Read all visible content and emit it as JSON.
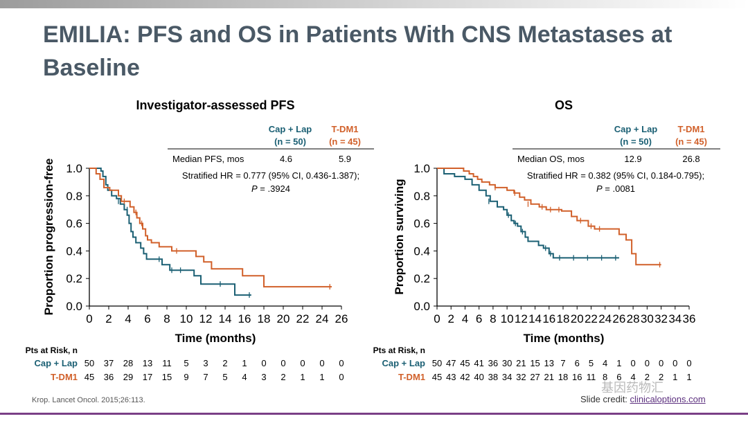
{
  "title": "EMILIA: PFS and OS in Patients With CNS Metastases at Baseline",
  "colors": {
    "cap_lap": "#1a5f73",
    "tdm1": "#d1602a",
    "title": "#4a5966"
  },
  "reference": "Krop. Lancet Oncol. 2015;26:113.",
  "credit": {
    "prefix": "Slide credit: ",
    "link": "clinicaloptions.com"
  },
  "watermark": "基因药物汇",
  "chart_data": [
    {
      "type": "line",
      "title": "Investigator-assessed PFS",
      "xlabel": "Time (months)",
      "ylabel": "Proportion progression-free",
      "xlim": [
        0,
        26
      ],
      "ylim": [
        0,
        1.0
      ],
      "xticks": [
        "0",
        "2",
        "4",
        "6",
        "8",
        "10",
        "12",
        "14",
        "16",
        "18",
        "20",
        "22",
        "24",
        "26"
      ],
      "yticks": [
        "0.0",
        "0.2",
        "0.4",
        "0.6",
        "0.8",
        "1.0"
      ],
      "table": {
        "headers": [
          "Cap + Lap",
          "(n = 50)",
          "T-DM1",
          "(n = 45)"
        ],
        "row_label": "Median PFS, mos",
        "values": [
          "4.6",
          "5.9"
        ],
        "hr_text": "Stratified HR = 0.777 (95% CI, 0.436-1.387);",
        "p_label": "P",
        "p_value": " = .3924"
      },
      "risk": {
        "label": "Pts at Risk, n",
        "times": [
          0,
          2,
          4,
          6,
          8,
          10,
          12,
          14,
          16,
          18,
          20,
          22,
          24,
          26
        ],
        "rows": [
          {
            "name": "Cap + Lap",
            "values": [
              "50",
              "37",
              "28",
              "13",
              "11",
              "5",
              "3",
              "2",
              "1",
              "0",
              "0",
              "0",
              "0",
              "0"
            ]
          },
          {
            "name": "T-DM1",
            "values": [
              "45",
              "36",
              "29",
              "17",
              "15",
              "9",
              "7",
              "5",
              "4",
              "3",
              "2",
              "1",
              "1",
              "0"
            ]
          }
        ]
      },
      "series": [
        {
          "name": "Cap + Lap",
          "steps": [
            [
              0,
              1.0
            ],
            [
              1.2,
              0.98
            ],
            [
              1.4,
              0.94
            ],
            [
              1.7,
              0.88
            ],
            [
              1.9,
              0.84
            ],
            [
              2.3,
              0.8
            ],
            [
              2.8,
              0.78
            ],
            [
              3.2,
              0.74
            ],
            [
              3.6,
              0.7
            ],
            [
              3.9,
              0.66
            ],
            [
              4.1,
              0.6
            ],
            [
              4.3,
              0.54
            ],
            [
              4.5,
              0.5
            ],
            [
              4.8,
              0.46
            ],
            [
              5.3,
              0.42
            ],
            [
              5.6,
              0.38
            ],
            [
              5.9,
              0.34
            ],
            [
              7.5,
              0.3
            ],
            [
              8.3,
              0.26
            ],
            [
              10.8,
              0.22
            ],
            [
              11.5,
              0.16
            ],
            [
              15.0,
              0.08
            ],
            [
              16.7,
              0.08
            ]
          ],
          "censors": [
            [
              3.0,
              0.76
            ],
            [
              3.9,
              0.7
            ],
            [
              7.2,
              0.34
            ],
            [
              8.5,
              0.26
            ],
            [
              9.4,
              0.26
            ],
            [
              13.5,
              0.16
            ],
            [
              16.5,
              0.08
            ]
          ]
        },
        {
          "name": "T-DM1",
          "steps": [
            [
              0,
              1.0
            ],
            [
              0.7,
              0.96
            ],
            [
              1.1,
              0.92
            ],
            [
              1.5,
              0.86
            ],
            [
              2.1,
              0.84
            ],
            [
              3.0,
              0.8
            ],
            [
              3.3,
              0.76
            ],
            [
              4.2,
              0.72
            ],
            [
              4.6,
              0.68
            ],
            [
              4.9,
              0.64
            ],
            [
              5.2,
              0.6
            ],
            [
              5.5,
              0.56
            ],
            [
              5.8,
              0.51
            ],
            [
              6.0,
              0.48
            ],
            [
              6.4,
              0.46
            ],
            [
              7.2,
              0.43
            ],
            [
              8.5,
              0.4
            ],
            [
              11.0,
              0.36
            ],
            [
              11.8,
              0.32
            ],
            [
              12.6,
              0.27
            ],
            [
              15.8,
              0.22
            ],
            [
              18.0,
              0.14
            ],
            [
              25.0,
              0.14
            ]
          ],
          "censors": [
            [
              3.6,
              0.76
            ],
            [
              4.8,
              0.68
            ],
            [
              5.4,
              0.6
            ],
            [
              9.0,
              0.4
            ],
            [
              24.8,
              0.14
            ]
          ]
        }
      ]
    },
    {
      "type": "line",
      "title": "OS",
      "xlabel": "Time (months)",
      "ylabel": "Proportion surviving",
      "xlim": [
        0,
        36
      ],
      "ylim": [
        0,
        1.0
      ],
      "xticks": [
        "0",
        "2",
        "4",
        "6",
        "8",
        "10",
        "12",
        "14",
        "16",
        "18",
        "20",
        "22",
        "24",
        "26",
        "28",
        "30",
        "32",
        "34",
        "36"
      ],
      "yticks": [
        "0.0",
        "0.2",
        "0.4",
        "0.6",
        "0.8",
        "1.0"
      ],
      "table": {
        "headers": [
          "Cap + Lap",
          "(n = 50)",
          "T-DM1",
          "(n = 45)"
        ],
        "row_label": "Median OS, mos",
        "values": [
          "12.9",
          "26.8"
        ],
        "hr_text": "Stratified HR = 0.382 (95% CI, 0.184-0.795);",
        "p_label": "P",
        "p_value": " = .0081"
      },
      "risk": {
        "label": "Pts at Risk, n",
        "times": [
          0,
          2,
          4,
          6,
          8,
          10,
          12,
          14,
          16,
          18,
          20,
          22,
          24,
          26,
          28,
          30,
          32,
          34,
          36
        ],
        "rows": [
          {
            "name": "Cap + Lap",
            "values": [
              "50",
              "47",
              "45",
              "41",
              "36",
              "30",
              "21",
              "15",
              "13",
              "7",
              "6",
              "5",
              "4",
              "1",
              "0",
              "0",
              "0",
              "0",
              "0"
            ]
          },
          {
            "name": "T-DM1",
            "values": [
              "45",
              "43",
              "42",
              "40",
              "38",
              "34",
              "32",
              "27",
              "21",
              "18",
              "16",
              "11",
              "8",
              "6",
              "4",
              "2",
              "2",
              "1",
              "1"
            ]
          }
        ]
      },
      "series": [
        {
          "name": "Cap + Lap",
          "steps": [
            [
              0,
              1.0
            ],
            [
              1.0,
              0.96
            ],
            [
              2.5,
              0.94
            ],
            [
              4.0,
              0.92
            ],
            [
              5.0,
              0.88
            ],
            [
              6.0,
              0.84
            ],
            [
              7.0,
              0.8
            ],
            [
              7.6,
              0.76
            ],
            [
              8.6,
              0.72
            ],
            [
              9.5,
              0.7
            ],
            [
              10.0,
              0.66
            ],
            [
              10.6,
              0.62
            ],
            [
              11.0,
              0.6
            ],
            [
              11.5,
              0.58
            ],
            [
              12.0,
              0.54
            ],
            [
              12.6,
              0.5
            ],
            [
              13.0,
              0.47
            ],
            [
              14.5,
              0.44
            ],
            [
              15.2,
              0.42
            ],
            [
              16.0,
              0.38
            ],
            [
              16.6,
              0.35
            ],
            [
              26.0,
              0.35
            ]
          ],
          "censors": [
            [
              7.4,
              0.76
            ],
            [
              10.2,
              0.66
            ],
            [
              11.2,
              0.6
            ],
            [
              12.2,
              0.54
            ],
            [
              15.5,
              0.42
            ],
            [
              16.2,
              0.38
            ],
            [
              17.5,
              0.35
            ],
            [
              19.5,
              0.35
            ],
            [
              21.5,
              0.35
            ],
            [
              23.5,
              0.35
            ],
            [
              25.5,
              0.35
            ]
          ]
        },
        {
          "name": "T-DM1",
          "steps": [
            [
              0,
              1.0
            ],
            [
              3.8,
              0.98
            ],
            [
              4.6,
              0.96
            ],
            [
              5.2,
              0.94
            ],
            [
              5.8,
              0.92
            ],
            [
              6.4,
              0.9
            ],
            [
              7.5,
              0.88
            ],
            [
              8.3,
              0.86
            ],
            [
              10.0,
              0.84
            ],
            [
              11.0,
              0.82
            ],
            [
              11.8,
              0.79
            ],
            [
              12.5,
              0.77
            ],
            [
              13.4,
              0.74
            ],
            [
              14.6,
              0.72
            ],
            [
              15.6,
              0.7
            ],
            [
              17.8,
              0.69
            ],
            [
              19.2,
              0.65
            ],
            [
              20.0,
              0.62
            ],
            [
              21.6,
              0.58
            ],
            [
              22.5,
              0.56
            ],
            [
              26.0,
              0.52
            ],
            [
              27.0,
              0.48
            ],
            [
              27.8,
              0.38
            ],
            [
              28.4,
              0.3
            ],
            [
              32.0,
              0.3
            ]
          ],
          "censors": [
            [
              8.3,
              0.86
            ],
            [
              11.1,
              0.82
            ],
            [
              13.0,
              0.74
            ],
            [
              15.0,
              0.72
            ],
            [
              16.2,
              0.7
            ],
            [
              17.4,
              0.7
            ],
            [
              20.5,
              0.62
            ],
            [
              22.0,
              0.58
            ],
            [
              23.2,
              0.56
            ],
            [
              31.8,
              0.3
            ]
          ]
        }
      ]
    }
  ]
}
